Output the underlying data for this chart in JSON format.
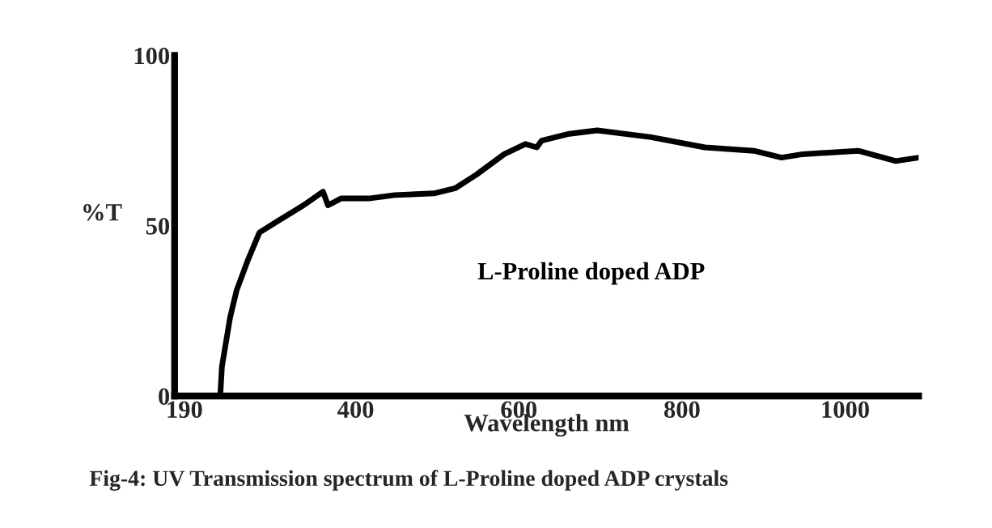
{
  "chart_data": {
    "type": "line",
    "xlabel": "Wavelength nm",
    "ylabel": "%T",
    "annotations": [
      "Fig-4: UV Transmission spectrum of L-Proline doped ADP crystals"
    ],
    "xlim": [
      178,
      1090
    ],
    "ylim": [
      0,
      100
    ],
    "xticks": [
      190,
      400,
      600,
      800,
      1000
    ],
    "yticks": [
      0,
      50,
      100
    ],
    "grid": false,
    "legend": false,
    "series": [
      {
        "name": "L-Proline doped ADP",
        "color": "#000000",
        "x": [
          234,
          236,
          246,
          254,
          268,
          282,
          302,
          336,
          360,
          366,
          382,
          416,
          448,
          496,
          522,
          548,
          582,
          608,
          622,
          628,
          662,
          696,
          762,
          828,
          888,
          922,
          948,
          1016,
          1062,
          1090
        ],
        "values": [
          0,
          8.6,
          23,
          31,
          40,
          48,
          51,
          56,
          60,
          56,
          58,
          58,
          59,
          59.5,
          61,
          65,
          71,
          74,
          73,
          75,
          77,
          78,
          76,
          73,
          72,
          70,
          71,
          72,
          69,
          70
        ]
      }
    ]
  }
}
